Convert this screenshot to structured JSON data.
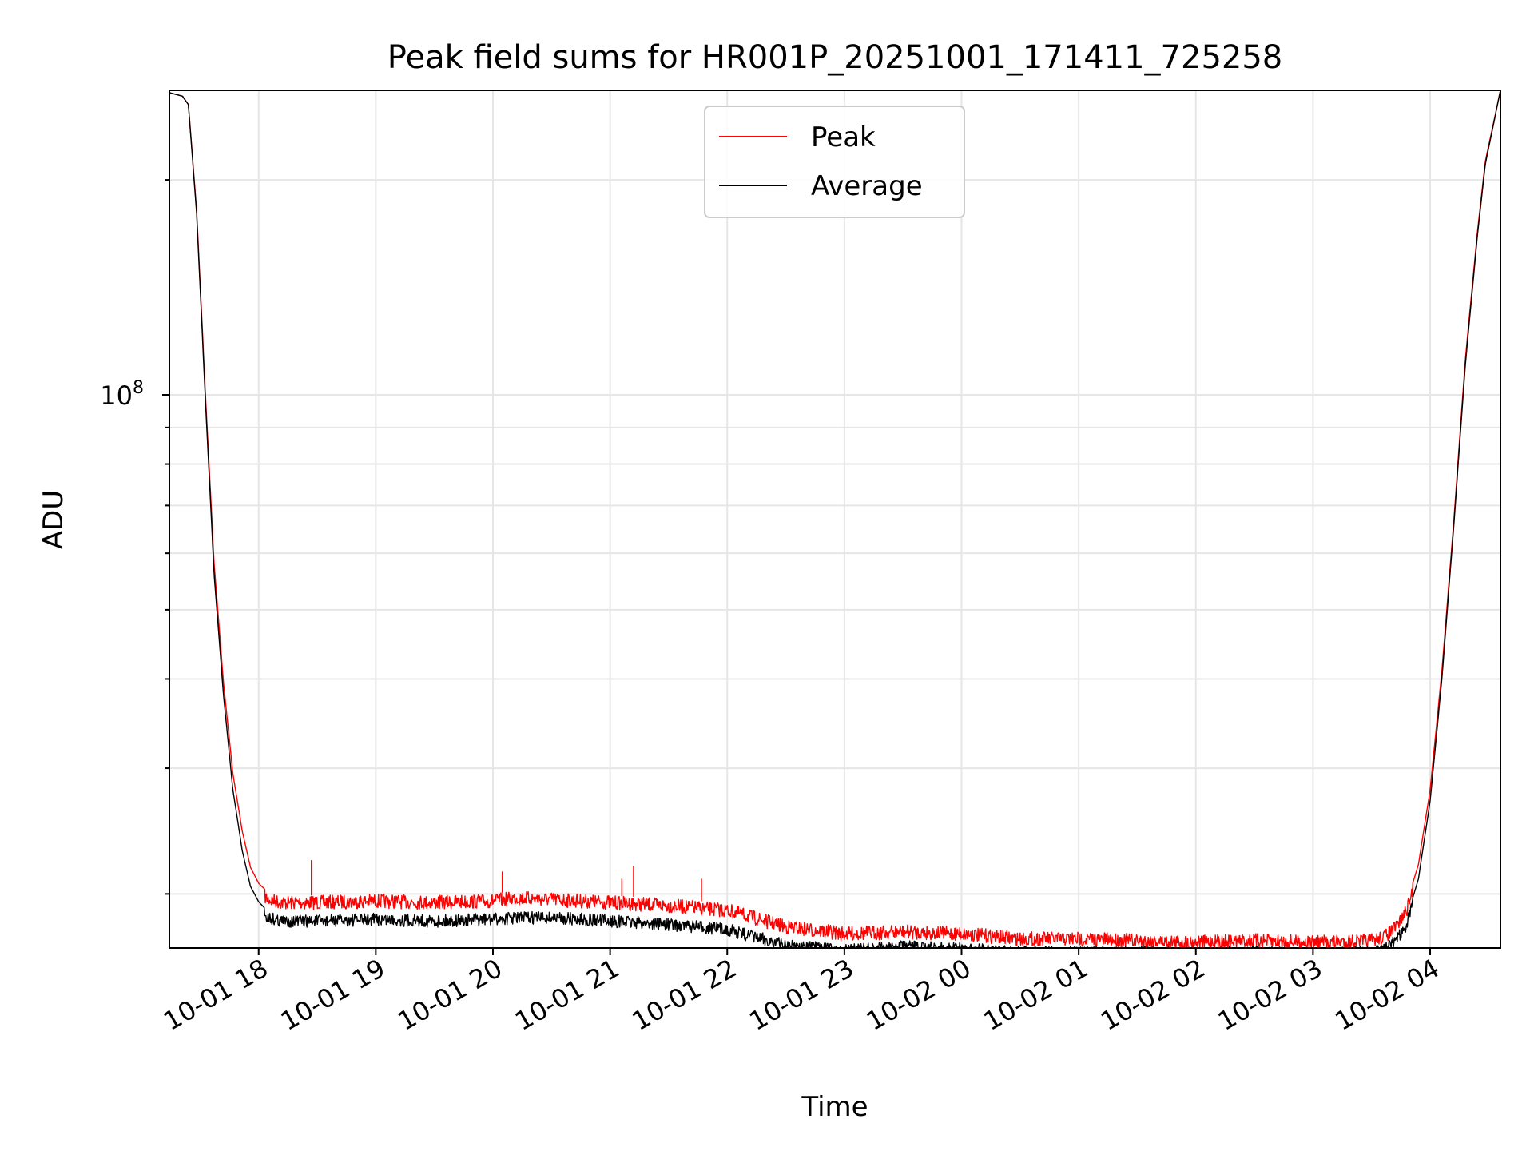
{
  "chart_data": {
    "type": "line",
    "title": "Peak field sums for HR001P_20251001_171411_725258",
    "xlabel": "Time",
    "ylabel": "ADU",
    "yscale": "log",
    "ytick_label": {
      "base": "10",
      "exp": "8"
    },
    "ytick_value": 100000000,
    "ylim": [
      16800000,
      267000000
    ],
    "xlim_hours": [
      17.238,
      28.6
    ],
    "xticks": [
      {
        "label": "10-01 18",
        "hour": 18
      },
      {
        "label": "10-01 19",
        "hour": 19
      },
      {
        "label": "10-01 20",
        "hour": 20
      },
      {
        "label": "10-01 21",
        "hour": 21
      },
      {
        "label": "10-01 22",
        "hour": 22
      },
      {
        "label": "10-01 23",
        "hour": 23
      },
      {
        "label": "10-02 00",
        "hour": 24
      },
      {
        "label": "10-02 01",
        "hour": 25
      },
      {
        "label": "10-02 02",
        "hour": 26
      },
      {
        "label": "10-02 03",
        "hour": 27
      },
      {
        "label": "10-02 04",
        "hour": 28
      }
    ],
    "grid": true,
    "legend_position": "top-center",
    "legend": [
      {
        "label": "Peak",
        "color": "#ff0000"
      },
      {
        "label": "Average",
        "color": "#000000"
      }
    ],
    "series": [
      {
        "name": "Average",
        "color": "#000000",
        "x_hours": [
          17.238,
          17.35,
          17.4,
          17.47,
          17.55,
          17.62,
          17.7,
          17.78,
          17.86,
          17.93,
          18.0,
          18.08,
          18.2,
          18.5,
          19.0,
          19.5,
          20.0,
          20.2,
          20.5,
          21.0,
          21.5,
          22.0,
          22.1,
          22.5,
          23.0,
          23.5,
          24.0,
          24.5,
          25.0,
          25.5,
          26.0,
          26.5,
          27.0,
          27.5,
          27.6,
          27.7,
          27.8,
          27.9,
          28.0,
          28.1,
          28.2,
          28.3,
          28.4,
          28.47,
          28.6
        ],
        "values": [
          265000000,
          262000000,
          255000000,
          180000000,
          95000000,
          56000000,
          38000000,
          28000000,
          23000000,
          20500000,
          19500000,
          18900000,
          18700000,
          18700000,
          18800000,
          18700000,
          18800000,
          18900000,
          18900000,
          18700000,
          18500000,
          18200000,
          18000000,
          17300000,
          17000000,
          17200000,
          17100000,
          16900000,
          16900000,
          16900000,
          16800000,
          16900000,
          16800000,
          16900000,
          17000000,
          17500000,
          18500000,
          21000000,
          27000000,
          40000000,
          65000000,
          110000000,
          165000000,
          210000000,
          267000000
        ]
      },
      {
        "name": "Peak",
        "color": "#ff0000",
        "x_hours": [
          17.238,
          17.35,
          17.4,
          17.47,
          17.55,
          17.62,
          17.7,
          17.78,
          17.86,
          17.93,
          18.0,
          18.08,
          18.2,
          18.5,
          19.0,
          19.5,
          20.0,
          20.2,
          20.5,
          21.0,
          21.5,
          22.0,
          22.1,
          22.5,
          23.0,
          23.5,
          24.0,
          24.5,
          25.0,
          25.5,
          26.0,
          26.5,
          27.0,
          27.5,
          27.6,
          27.7,
          27.8,
          27.9,
          28.0,
          28.1,
          28.2,
          28.3,
          28.4,
          28.47,
          28.6
        ],
        "values": [
          265000000,
          262000000,
          255000000,
          182000000,
          97000000,
          58000000,
          39500000,
          29500000,
          24500000,
          21800000,
          20700000,
          20100000,
          19900000,
          19900000,
          20000000,
          19900000,
          20000000,
          20200000,
          20100000,
          19900000,
          19700000,
          19400000,
          19200000,
          18400000,
          18000000,
          18100000,
          18000000,
          17700000,
          17700000,
          17600000,
          17500000,
          17600000,
          17500000,
          17600000,
          17800000,
          18300000,
          19400000,
          22000000,
          28000000,
          41000000,
          66000000,
          112000000,
          167000000,
          212000000,
          267000000
        ]
      }
    ],
    "annotations": [
      {
        "series": "Peak",
        "hour": 18.45,
        "value": 22300000
      },
      {
        "series": "Peak",
        "hour": 20.08,
        "value": 21500000
      },
      {
        "series": "Peak",
        "hour": 21.2,
        "value": 21900000
      },
      {
        "series": "Peak",
        "hour": 21.78,
        "value": 21000000
      },
      {
        "series": "Peak",
        "hour": 21.1,
        "value": 21000000
      }
    ]
  }
}
